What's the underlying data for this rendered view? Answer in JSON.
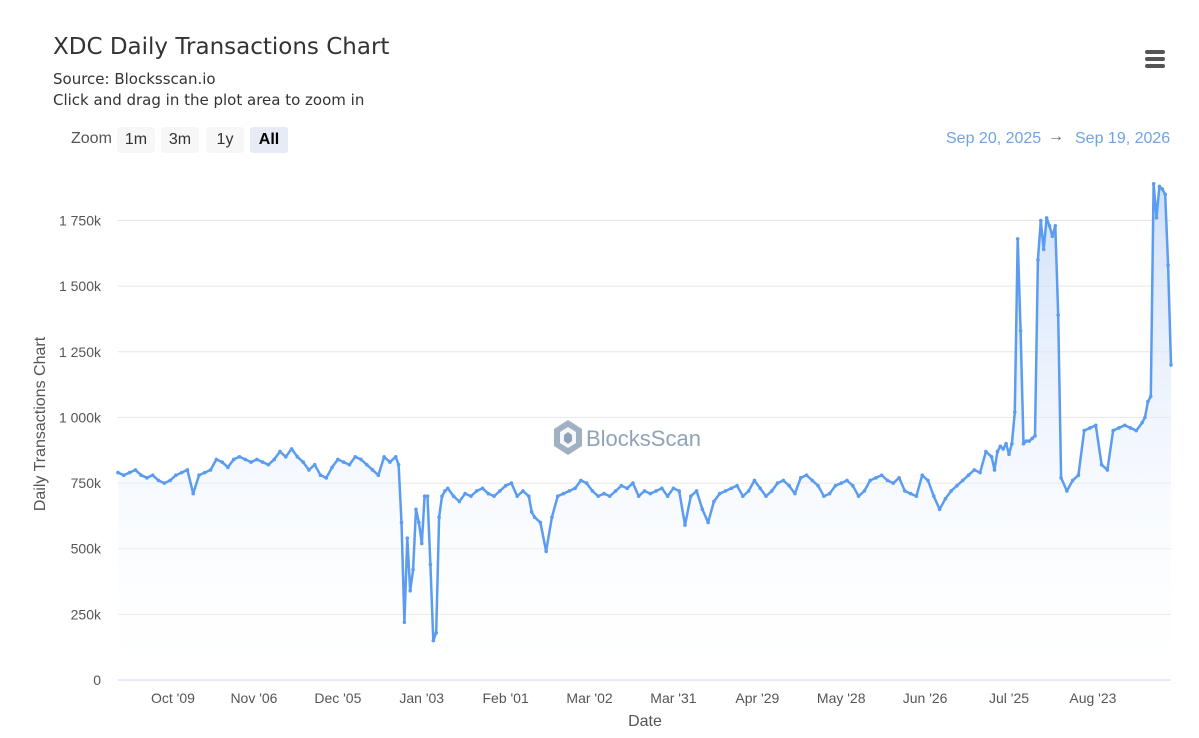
{
  "header": {
    "title": "XDC Daily Transactions Chart",
    "source": "Source: Blocksscan.io",
    "hint": "Click and drag in the plot area to zoom in"
  },
  "menu": {
    "icon": "hamburger-menu-icon"
  },
  "zoom": {
    "label": "Zoom",
    "buttons": [
      "1m",
      "3m",
      "1y",
      "All"
    ],
    "active": "All"
  },
  "range": {
    "from": "Sep 20, 2025",
    "arrow": "→",
    "to": "Sep 19, 2026"
  },
  "watermark": {
    "text": "BlocksScan",
    "icon": "blocksscan-logo-icon"
  },
  "colors": {
    "line": "#5b9cf0",
    "fill_top": "#c9dcf8",
    "grid": "#e6e6e6",
    "range_text": "#6fa3e3"
  },
  "chart_data": {
    "type": "area",
    "title": "XDC Daily Transactions Chart",
    "ylabel": "Daily Transactions Chart",
    "xlabel": "Date",
    "ylim": [
      0,
      1950000
    ],
    "y_ticks": [
      {
        "value": 0,
        "label": "0"
      },
      {
        "value": 250000,
        "label": "250k"
      },
      {
        "value": 500000,
        "label": "500k"
      },
      {
        "value": 750000,
        "label": "750k"
      },
      {
        "value": 1000000,
        "label": "1 000k"
      },
      {
        "value": 1250000,
        "label": "1 250k"
      },
      {
        "value": 1500000,
        "label": "1 500k"
      },
      {
        "value": 1750000,
        "label": "1 750k"
      }
    ],
    "x_range": [
      0,
      364
    ],
    "x_ticks": [
      {
        "day": 19,
        "label": "Oct '09"
      },
      {
        "day": 47,
        "label": "Nov '06"
      },
      {
        "day": 76,
        "label": "Dec '05"
      },
      {
        "day": 105,
        "label": "Jan '03"
      },
      {
        "day": 134,
        "label": "Feb '01"
      },
      {
        "day": 163,
        "label": "Mar '02"
      },
      {
        "day": 192,
        "label": "Mar '31"
      },
      {
        "day": 221,
        "label": "Apr '29"
      },
      {
        "day": 250,
        "label": "May '28"
      },
      {
        "day": 279,
        "label": "Jun '26"
      },
      {
        "day": 308,
        "label": "Jul '25"
      },
      {
        "day": 337,
        "label": "Aug '23"
      }
    ],
    "series": [
      {
        "x": [
          0,
          2,
          4,
          6,
          8,
          10,
          12,
          14,
          16,
          18,
          20,
          22,
          24,
          26,
          28,
          30,
          32,
          34,
          36,
          38,
          40,
          42,
          44,
          46,
          48,
          50,
          52,
          54,
          56,
          58,
          60,
          62,
          64,
          66,
          68,
          70,
          72,
          74,
          76,
          78,
          80,
          82,
          84,
          86,
          88,
          90,
          92,
          94,
          96,
          97,
          98,
          99,
          100,
          101,
          102,
          103,
          104,
          105,
          106,
          107,
          108,
          109,
          110,
          111,
          112,
          113,
          114,
          116,
          118,
          120,
          122,
          124,
          126,
          128,
          130,
          132,
          134,
          136,
          138,
          140,
          142,
          143,
          144,
          146,
          148,
          150,
          152,
          154,
          156,
          158,
          160,
          162,
          164,
          166,
          168,
          170,
          172,
          174,
          176,
          178,
          180,
          182,
          184,
          186,
          188,
          190,
          192,
          194,
          196,
          198,
          200,
          202,
          204,
          206,
          208,
          210,
          212,
          214,
          216,
          218,
          220,
          222,
          224,
          226,
          228,
          230,
          232,
          234,
          236,
          238,
          240,
          242,
          244,
          246,
          248,
          250,
          252,
          254,
          256,
          258,
          260,
          262,
          264,
          266,
          268,
          270,
          272,
          274,
          276,
          278,
          280,
          282,
          284,
          286,
          288,
          290,
          292,
          294,
          296,
          298,
          300,
          302,
          303,
          304,
          305,
          306,
          307,
          308,
          309,
          310,
          311,
          312,
          313,
          314,
          315,
          316,
          317,
          318,
          319,
          320,
          321,
          322,
          323,
          324,
          325,
          326,
          328,
          330,
          332,
          334,
          336,
          338,
          340,
          342,
          344,
          346,
          348,
          350,
          352,
          354,
          355,
          356,
          357,
          358,
          359,
          360,
          361,
          362,
          363,
          364
        ],
        "y": [
          790000,
          780000,
          790000,
          800000,
          780000,
          770000,
          780000,
          760000,
          750000,
          760000,
          780000,
          790000,
          800000,
          710000,
          780000,
          790000,
          800000,
          840000,
          830000,
          810000,
          840000,
          850000,
          840000,
          830000,
          840000,
          830000,
          820000,
          840000,
          870000,
          850000,
          880000,
          850000,
          830000,
          800000,
          820000,
          780000,
          770000,
          810000,
          840000,
          830000,
          820000,
          850000,
          840000,
          820000,
          800000,
          780000,
          850000,
          830000,
          850000,
          820000,
          600000,
          220000,
          540000,
          340000,
          420000,
          650000,
          600000,
          520000,
          700000,
          700000,
          440000,
          150000,
          180000,
          620000,
          700000,
          720000,
          730000,
          700000,
          680000,
          710000,
          700000,
          720000,
          730000,
          710000,
          700000,
          720000,
          740000,
          750000,
          700000,
          720000,
          700000,
          640000,
          620000,
          600000,
          490000,
          620000,
          700000,
          710000,
          720000,
          730000,
          760000,
          750000,
          720000,
          700000,
          710000,
          700000,
          720000,
          740000,
          730000,
          750000,
          700000,
          720000,
          710000,
          720000,
          730000,
          700000,
          730000,
          720000,
          590000,
          700000,
          720000,
          650000,
          600000,
          680000,
          710000,
          720000,
          730000,
          740000,
          700000,
          720000,
          760000,
          730000,
          700000,
          720000,
          750000,
          760000,
          740000,
          710000,
          770000,
          780000,
          760000,
          740000,
          700000,
          710000,
          740000,
          750000,
          760000,
          740000,
          700000,
          720000,
          760000,
          770000,
          780000,
          760000,
          750000,
          770000,
          720000,
          710000,
          700000,
          780000,
          760000,
          700000,
          650000,
          690000,
          720000,
          740000,
          760000,
          780000,
          800000,
          790000,
          870000,
          850000,
          800000,
          870000,
          890000,
          880000,
          900000,
          860000,
          900000,
          1020000,
          1680000,
          1330000,
          900000,
          910000,
          910000,
          920000,
          930000,
          1600000,
          1750000,
          1640000,
          1760000,
          1730000,
          1690000,
          1730000,
          1390000,
          770000,
          720000,
          760000,
          780000,
          950000,
          960000,
          970000,
          820000,
          800000,
          950000,
          960000,
          970000,
          960000,
          950000,
          980000,
          1000000,
          1060000,
          1080000,
          1890000,
          1760000,
          1880000,
          1870000,
          1850000,
          1580000,
          1200000
        ]
      }
    ]
  }
}
